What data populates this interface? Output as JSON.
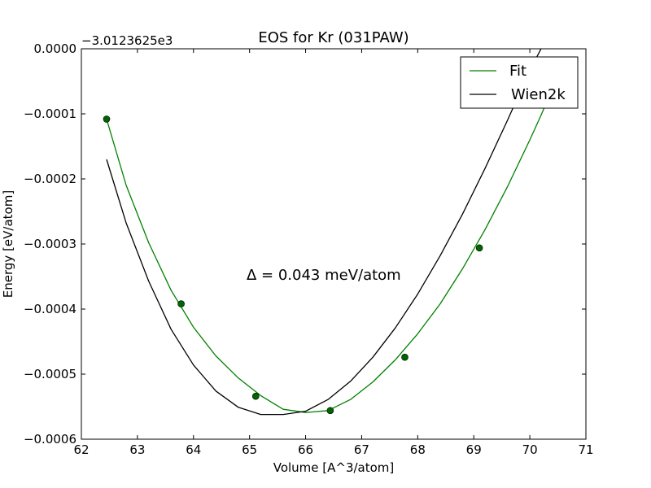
{
  "chart_data": {
    "type": "line",
    "title": "EOS for Kr (031PAW)",
    "xlabel": "Volume [A^3/atom]",
    "ylabel": "Energy [eV/atom]",
    "y_offset_label": "−3.0123625e3",
    "xlim": [
      62,
      71
    ],
    "ylim": [
      -0.0006,
      0.0
    ],
    "x_ticks": [
      62,
      63,
      64,
      65,
      66,
      67,
      68,
      69,
      70,
      71
    ],
    "x_tick_labels": [
      "62",
      "63",
      "64",
      "65",
      "66",
      "67",
      "68",
      "69",
      "70",
      "71"
    ],
    "y_ticks": [
      0.0,
      -0.0001,
      -0.0002,
      -0.0003,
      -0.0004,
      -0.0005,
      -0.0006
    ],
    "y_tick_labels": [
      "0.0000",
      "−0.0001",
      "−0.0002",
      "−0.0003",
      "−0.0004",
      "−0.0005",
      "−0.0006"
    ],
    "annotation": "Δ = 0.043 meV/atom",
    "legend_position": "top-right",
    "grid": false,
    "series": [
      {
        "name": "Fit",
        "color": "#008000",
        "style": "line",
        "x": [
          62.45,
          62.8,
          63.2,
          63.6,
          64.0,
          64.4,
          64.8,
          65.2,
          65.6,
          66.0,
          66.4,
          66.8,
          67.2,
          67.6,
          68.0,
          68.4,
          68.8,
          69.2,
          69.6,
          70.0,
          70.2,
          70.4,
          70.5
        ],
        "y": [
          -0.000108,
          -0.00021,
          -0.000298,
          -0.000371,
          -0.000428,
          -0.000472,
          -0.000506,
          -0.000533,
          -0.000554,
          -0.000559,
          -0.000556,
          -0.000539,
          -0.000512,
          -0.000478,
          -0.000438,
          -0.000392,
          -0.000338,
          -0.000278,
          -0.000212,
          -0.00014,
          -0.000102,
          -6.2e-05,
          -4e-05
        ]
      },
      {
        "name": "Wien2k",
        "color": "#000000",
        "style": "line",
        "x": [
          62.45,
          62.8,
          63.2,
          63.6,
          64.0,
          64.4,
          64.8,
          65.2,
          65.6,
          66.0,
          66.4,
          66.8,
          67.2,
          67.6,
          68.0,
          68.4,
          68.8,
          69.2,
          69.6,
          70.0,
          70.2,
          70.43
        ],
        "y": [
          -0.00017,
          -0.000268,
          -0.000357,
          -0.000431,
          -0.000486,
          -0.000526,
          -0.000551,
          -0.000562,
          -0.000562,
          -0.000557,
          -0.000539,
          -0.000511,
          -0.000474,
          -0.000429,
          -0.000377,
          -0.000318,
          -0.000254,
          -0.000184,
          -0.00011,
          -3.3e-05,
          0.0,
          4e-05
        ]
      },
      {
        "name": "",
        "color": "#006400",
        "style": "markers",
        "x": [
          62.45,
          63.78,
          65.11,
          66.44,
          67.77,
          69.1
        ],
        "y": [
          -0.000108,
          -0.000392,
          -0.000534,
          -0.000556,
          -0.000474,
          -0.000306
        ]
      }
    ]
  }
}
